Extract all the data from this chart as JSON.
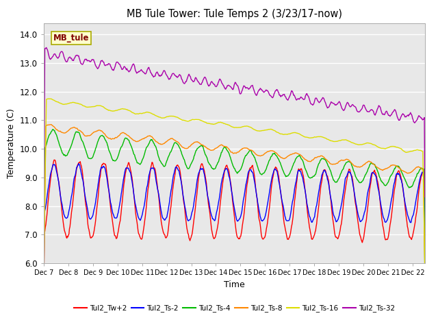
{
  "title": "MB Tule Tower: Tule Temps 2 (3/23/17-now)",
  "xlabel": "Time",
  "ylabel": "Temperature (C)",
  "ylim": [
    6.0,
    14.4
  ],
  "yticks": [
    6.0,
    7.0,
    8.0,
    9.0,
    10.0,
    11.0,
    12.0,
    13.0,
    14.0
  ],
  "bg_color": "#e8e8e8",
  "label_box": "MB_tule",
  "label_box_color": "#ffffcc",
  "label_box_text_color": "#800000",
  "lines": [
    {
      "label": "Tul2_Tw+2",
      "color": "#ff0000"
    },
    {
      "label": "Tul2_Ts-2",
      "color": "#0000ff"
    },
    {
      "label": "Tul2_Ts-4",
      "color": "#00bb00"
    },
    {
      "label": "Tul2_Ts-8",
      "color": "#ff8800"
    },
    {
      "label": "Tul2_Ts-16",
      "color": "#dddd00"
    },
    {
      "label": "Tul2_Ts-32",
      "color": "#aa00aa"
    }
  ],
  "xtick_labels": [
    "Dec 7",
    "Dec 8",
    "Dec 9",
    "Dec 10",
    "Dec 11",
    "Dec 12",
    "Dec 13",
    "Dec 14",
    "Dec 15",
    "Dec 16",
    "Dec 17",
    "Dec 18",
    "Dec 19",
    "Dec 20",
    "Dec 21",
    "Dec 22"
  ],
  "n_days": 15.5,
  "n_points": 744
}
